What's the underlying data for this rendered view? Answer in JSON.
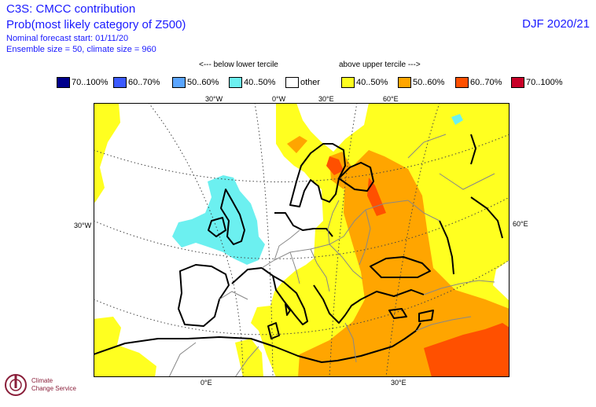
{
  "header": {
    "line1": "C3S: CMCC contribution",
    "line2": "Prob(most likely category of Z500)",
    "line3": "Nominal forecast start: 01/11/20",
    "line4": "Ensemble size = 50, climate size = 960",
    "season": "DJF 2020/21"
  },
  "legend": {
    "below_label": "<--- below lower tercile",
    "above_label": "above upper tercile --->",
    "items": [
      {
        "label": "70..100%",
        "color": "#00008b"
      },
      {
        "label": "60..70%",
        "color": "#3c5aff"
      },
      {
        "label": "50..60%",
        "color": "#5aa5ff"
      },
      {
        "label": "40..50%",
        "color": "#6cf0f0"
      },
      {
        "label": "other",
        "color": "#ffffff"
      },
      {
        "label": "40..50%",
        "color": "#ffff20"
      },
      {
        "label": "50..60%",
        "color": "#ffa500"
      },
      {
        "label": "60..70%",
        "color": "#ff5000"
      },
      {
        "label": "70..100%",
        "color": "#c80028"
      }
    ]
  },
  "axes": {
    "top": [
      "30°W",
      "0°W",
      "30°E",
      "60°E"
    ],
    "bottom": [
      "0°E",
      "30°E"
    ],
    "left": "30°W",
    "right": "60°E"
  },
  "logo": {
    "line1": "Climate",
    "line2": "Change Service"
  }
}
